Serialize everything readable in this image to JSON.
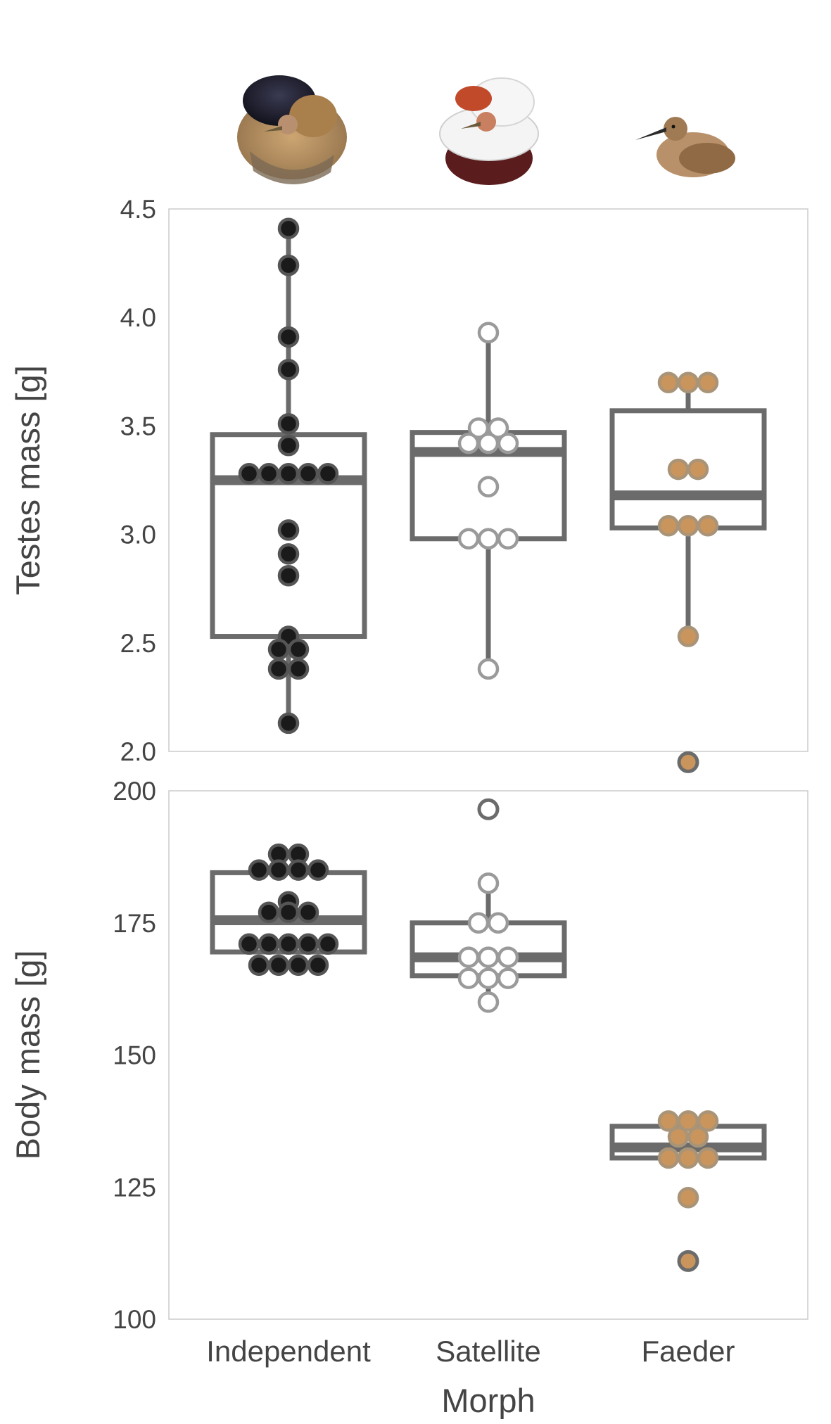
{
  "chart_data": [
    {
      "type": "box",
      "ylabel": "Testes mass [g]",
      "xlabel": "",
      "ylim": [
        2.0,
        4.5
      ],
      "yticks": [
        "2.0",
        "2.5",
        "3.0",
        "3.5",
        "4.0",
        "4.5"
      ],
      "grid": false,
      "categories": [
        "Independent",
        "Satellite",
        "Faeder"
      ],
      "boxes": [
        {
          "category": "Independent",
          "q1": 2.53,
          "median": 3.25,
          "q3": 3.46,
          "whisker_low": 2.13,
          "whisker_high": 4.41
        },
        {
          "category": "Satellite",
          "q1": 2.98,
          "median": 3.38,
          "q3": 3.47,
          "whisker_low": 2.38,
          "whisker_high": 3.93
        },
        {
          "category": "Faeder",
          "q1": 3.03,
          "median": 3.18,
          "q3": 3.57,
          "whisker_low": 2.53,
          "whisker_high": 3.7
        }
      ],
      "points": [
        {
          "category": "Independent",
          "values": [
            4.41,
            4.24,
            3.91,
            3.76,
            3.51,
            3.41,
            3.28,
            3.28,
            3.28,
            3.28,
            3.28,
            3.02,
            2.91,
            2.81,
            2.53,
            2.47,
            2.47,
            2.38,
            2.38,
            2.13
          ]
        },
        {
          "category": "Satellite",
          "values": [
            3.93,
            3.49,
            3.49,
            3.42,
            3.42,
            3.42,
            3.22,
            2.98,
            2.98,
            2.98,
            2.38
          ]
        },
        {
          "category": "Faeder",
          "values": [
            3.7,
            3.7,
            3.7,
            3.3,
            3.3,
            3.04,
            3.04,
            3.04,
            2.53,
            1.95
          ]
        }
      ],
      "outliers": [
        {
          "category": "Faeder",
          "value": 1.95
        }
      ],
      "colors": {
        "Independent": "#1a1a1a",
        "Satellite": "#ffffff",
        "Faeder": "#c9955d",
        "box": "#6b6b6b",
        "point_edge_dark": "#555555",
        "point_edge_light": "#9a9a9a",
        "point_edge_faeder": "#a99478"
      }
    },
    {
      "type": "box",
      "ylabel": "Body mass [g]",
      "xlabel": "Morph",
      "ylim": [
        100,
        200
      ],
      "yticks": [
        "100",
        "125",
        "150",
        "175",
        "200"
      ],
      "grid": false,
      "categories": [
        "Independent",
        "Satellite",
        "Faeder"
      ],
      "boxes": [
        {
          "category": "Independent",
          "q1": 169.5,
          "median": 175.5,
          "q3": 184.5,
          "whisker_low": 169.5,
          "whisker_high": 184.5
        },
        {
          "category": "Satellite",
          "q1": 165,
          "median": 168.5,
          "q3": 175,
          "whisker_low": 160,
          "whisker_high": 182.5
        },
        {
          "category": "Faeder",
          "q1": 130.5,
          "median": 132.5,
          "q3": 136.5,
          "whisker_low": 130.5,
          "whisker_high": 136.5
        }
      ],
      "points": [
        {
          "category": "Independent",
          "values": [
            188,
            188,
            185,
            185,
            185,
            185,
            179,
            177,
            177,
            177,
            171,
            171,
            171,
            171,
            171,
            167,
            167,
            167,
            167
          ]
        },
        {
          "category": "Satellite",
          "values": [
            196.5,
            182.5,
            175,
            175,
            168.5,
            168.5,
            168.5,
            164.5,
            164.5,
            164.5,
            160
          ]
        },
        {
          "category": "Faeder",
          "values": [
            137.5,
            137.5,
            137.5,
            134.5,
            134.5,
            130.5,
            130.5,
            130.5,
            123,
            111
          ]
        }
      ],
      "outliers": [
        {
          "category": "Satellite",
          "value": 196.5
        },
        {
          "category": "Faeder",
          "value": 111
        }
      ],
      "colors": {
        "Independent": "#1a1a1a",
        "Satellite": "#ffffff",
        "Faeder": "#c9955d",
        "box": "#6b6b6b",
        "point_edge_dark": "#555555",
        "point_edge_light": "#9a9a9a",
        "point_edge_faeder": "#a99478"
      }
    }
  ]
}
